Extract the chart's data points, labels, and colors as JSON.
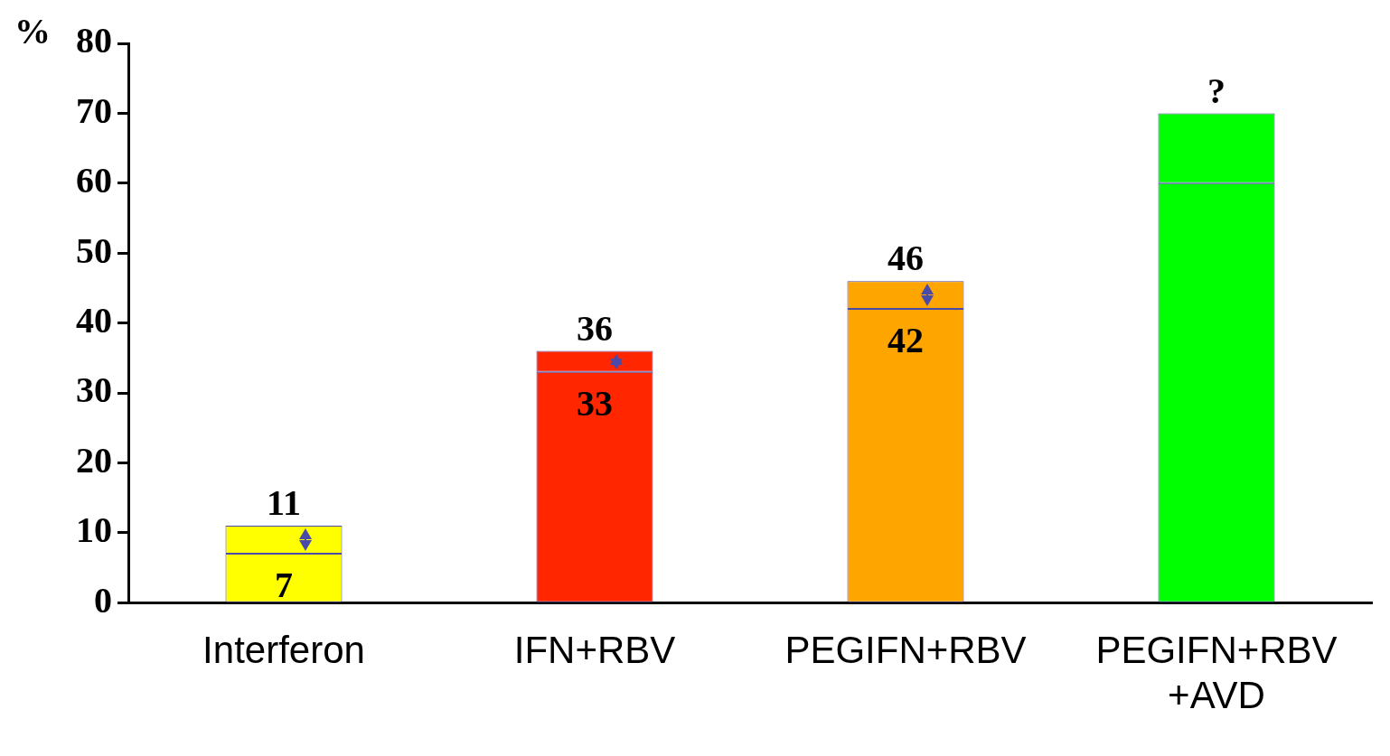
{
  "chart_data": {
    "type": "bar",
    "stacked": true,
    "ylabel": "%",
    "categories": [
      "Interferon",
      "IFN+RBV",
      "PEGIFN+RBV",
      "PEGIFN+RBV +AVD"
    ],
    "series": [
      {
        "values": [
          7,
          33,
          42,
          60
        ],
        "colors": [
          "#ffff00",
          "#ff2600",
          "#ffa500",
          "#00ff00"
        ],
        "value_labels": [
          "7",
          "33",
          "42",
          null
        ]
      },
      {
        "values": [
          4,
          3,
          4,
          10
        ],
        "colors": [
          "#ffff00",
          "#ff2600",
          "#ffa500",
          "#00ff00"
        ]
      }
    ],
    "totals": [
      "11",
      "36",
      "46",
      "?"
    ],
    "ylim": [
      0,
      80
    ],
    "yticks": [
      0,
      10,
      20,
      30,
      40,
      50,
      60,
      70,
      80
    ],
    "grid": false,
    "legend": false
  }
}
